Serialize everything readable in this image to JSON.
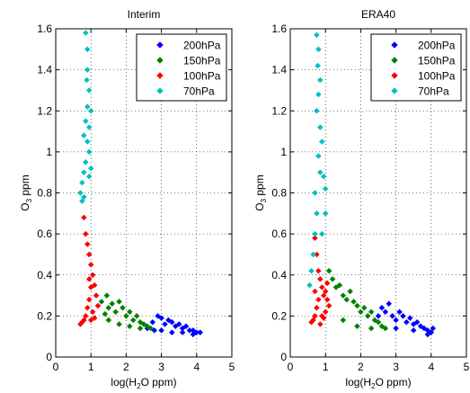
{
  "chart_data": [
    {
      "type": "scatter",
      "title": "Interim",
      "xlabel": "log(H",
      "xlabel_sub": "2",
      "xlabel_tail": "O ppm)",
      "ylabel": "O",
      "ylabel_sub": "3",
      "ylabel_tail": " ppm",
      "xlim": [
        0,
        5
      ],
      "ylim": [
        0,
        1.6
      ],
      "xticks": [
        "0",
        "1",
        "2",
        "3",
        "4",
        "5"
      ],
      "yticks": [
        "0",
        "0.2",
        "0.4",
        "0.6",
        "0.8",
        "1",
        "1.2",
        "1.4",
        "1.6"
      ],
      "grid": true,
      "legend_position": "top-right",
      "series": [
        {
          "name": "200hPa",
          "color": "#0000ff",
          "points": [
            [
              2.6,
              0.14
            ],
            [
              2.75,
              0.17
            ],
            [
              2.9,
              0.2
            ],
            [
              3.0,
              0.19
            ],
            [
              3.1,
              0.16
            ],
            [
              3.2,
              0.18
            ],
            [
              3.3,
              0.17
            ],
            [
              3.4,
              0.15
            ],
            [
              3.5,
              0.16
            ],
            [
              3.6,
              0.14
            ],
            [
              3.7,
              0.15
            ],
            [
              3.8,
              0.13
            ],
            [
              3.9,
              0.13
            ],
            [
              4.0,
              0.12
            ],
            [
              4.1,
              0.12
            ],
            [
              2.8,
              0.13
            ],
            [
              3.0,
              0.13
            ],
            [
              3.3,
              0.12
            ],
            [
              3.6,
              0.12
            ],
            [
              3.9,
              0.11
            ]
          ]
        },
        {
          "name": "150hPa",
          "color": "#008000",
          "points": [
            [
              1.3,
              0.27
            ],
            [
              1.45,
              0.3
            ],
            [
              1.5,
              0.24
            ],
            [
              1.6,
              0.26
            ],
            [
              1.7,
              0.22
            ],
            [
              1.8,
              0.27
            ],
            [
              1.9,
              0.24
            ],
            [
              2.0,
              0.2
            ],
            [
              2.1,
              0.22
            ],
            [
              2.2,
              0.18
            ],
            [
              2.3,
              0.2
            ],
            [
              2.4,
              0.17
            ],
            [
              2.5,
              0.16
            ],
            [
              2.6,
              0.15
            ],
            [
              2.7,
              0.14
            ],
            [
              1.5,
              0.18
            ],
            [
              1.8,
              0.16
            ],
            [
              2.1,
              0.15
            ],
            [
              2.4,
              0.14
            ],
            [
              1.4,
              0.21
            ]
          ]
        },
        {
          "name": "100hPa",
          "color": "#ff0000",
          "points": [
            [
              0.8,
              0.68
            ],
            [
              0.85,
              0.6
            ],
            [
              0.9,
              0.55
            ],
            [
              0.95,
              0.5
            ],
            [
              1.0,
              0.45
            ],
            [
              1.05,
              0.4
            ],
            [
              1.1,
              0.35
            ],
            [
              1.15,
              0.3
            ],
            [
              0.95,
              0.28
            ],
            [
              0.9,
              0.24
            ],
            [
              0.85,
              0.2
            ],
            [
              0.8,
              0.18
            ],
            [
              0.75,
              0.17
            ],
            [
              0.7,
              0.16
            ],
            [
              1.05,
              0.22
            ],
            [
              1.2,
              0.25
            ],
            [
              1.1,
              0.19
            ],
            [
              1.0,
              0.34
            ],
            [
              0.95,
              0.38
            ],
            [
              1.0,
              0.18
            ]
          ]
        },
        {
          "name": "70hPa",
          "color": "#00c0c0",
          "points": [
            [
              0.85,
              1.58
            ],
            [
              0.9,
              1.5
            ],
            [
              0.9,
              1.4
            ],
            [
              0.95,
              1.3
            ],
            [
              0.9,
              1.22
            ],
            [
              0.95,
              1.12
            ],
            [
              0.9,
              1.05
            ],
            [
              0.95,
              1.0
            ],
            [
              0.85,
              0.95
            ],
            [
              0.8,
              0.9
            ],
            [
              0.75,
              0.85
            ],
            [
              0.7,
              0.8
            ],
            [
              0.75,
              0.76
            ],
            [
              0.8,
              0.78
            ],
            [
              0.95,
              0.88
            ],
            [
              1.0,
              0.92
            ],
            [
              0.85,
              1.15
            ],
            [
              0.8,
              1.08
            ],
            [
              1.0,
              1.2
            ],
            [
              0.88,
              1.35
            ]
          ]
        }
      ]
    },
    {
      "type": "scatter",
      "title": "ERA40",
      "xlabel": "log(H",
      "xlabel_sub": "2",
      "xlabel_tail": "O ppm)",
      "ylabel": "O",
      "ylabel_sub": "3",
      "ylabel_tail": " ppm",
      "xlim": [
        0,
        5
      ],
      "ylim": [
        0,
        1.6
      ],
      "xticks": [
        "0",
        "1",
        "2",
        "3",
        "4",
        "5"
      ],
      "yticks": [
        "0",
        "0.2",
        "0.4",
        "0.6",
        "0.8",
        "1",
        "1.2",
        "1.4",
        "1.6"
      ],
      "grid": true,
      "legend_position": "top-right",
      "series": [
        {
          "name": "200hPa",
          "color": "#0000ff",
          "points": [
            [
              2.5,
              0.2
            ],
            [
              2.6,
              0.24
            ],
            [
              2.7,
              0.22
            ],
            [
              2.8,
              0.26
            ],
            [
              2.9,
              0.2
            ],
            [
              3.0,
              0.18
            ],
            [
              3.1,
              0.22
            ],
            [
              3.2,
              0.2
            ],
            [
              3.3,
              0.17
            ],
            [
              3.4,
              0.19
            ],
            [
              3.5,
              0.16
            ],
            [
              3.6,
              0.17
            ],
            [
              3.7,
              0.15
            ],
            [
              3.8,
              0.14
            ],
            [
              3.9,
              0.13
            ],
            [
              4.0,
              0.12
            ],
            [
              4.05,
              0.14
            ],
            [
              3.0,
              0.14
            ],
            [
              3.5,
              0.13
            ],
            [
              3.9,
              0.11
            ]
          ]
        },
        {
          "name": "150hPa",
          "color": "#008000",
          "points": [
            [
              1.1,
              0.42
            ],
            [
              1.2,
              0.38
            ],
            [
              1.3,
              0.34
            ],
            [
              1.4,
              0.35
            ],
            [
              1.5,
              0.3
            ],
            [
              1.6,
              0.28
            ],
            [
              1.7,
              0.32
            ],
            [
              1.8,
              0.27
            ],
            [
              1.9,
              0.25
            ],
            [
              2.0,
              0.22
            ],
            [
              2.1,
              0.24
            ],
            [
              2.2,
              0.2
            ],
            [
              2.3,
              0.22
            ],
            [
              2.4,
              0.18
            ],
            [
              2.5,
              0.17
            ],
            [
              2.6,
              0.15
            ],
            [
              2.7,
              0.14
            ],
            [
              1.5,
              0.18
            ],
            [
              1.9,
              0.15
            ],
            [
              2.3,
              0.14
            ]
          ]
        },
        {
          "name": "100hPa",
          "color": "#ff0000",
          "points": [
            [
              0.7,
              0.58
            ],
            [
              0.75,
              0.5
            ],
            [
              0.8,
              0.42
            ],
            [
              0.85,
              0.38
            ],
            [
              0.9,
              0.34
            ],
            [
              0.95,
              0.3
            ],
            [
              1.0,
              0.32
            ],
            [
              1.05,
              0.28
            ],
            [
              0.8,
              0.28
            ],
            [
              0.75,
              0.24
            ],
            [
              0.7,
              0.2
            ],
            [
              0.65,
              0.18
            ],
            [
              0.6,
              0.17
            ],
            [
              0.9,
              0.2
            ],
            [
              1.0,
              0.22
            ],
            [
              1.1,
              0.25
            ],
            [
              0.85,
              0.16
            ],
            [
              0.7,
              0.32
            ],
            [
              1.05,
              0.36
            ],
            [
              0.95,
              0.19
            ]
          ]
        },
        {
          "name": "70hPa",
          "color": "#00c0c0",
          "points": [
            [
              0.75,
              1.57
            ],
            [
              0.8,
              1.5
            ],
            [
              0.78,
              1.42
            ],
            [
              0.85,
              1.35
            ],
            [
              0.8,
              1.28
            ],
            [
              0.75,
              1.2
            ],
            [
              0.85,
              1.12
            ],
            [
              0.9,
              1.05
            ],
            [
              0.8,
              0.98
            ],
            [
              0.85,
              0.9
            ],
            [
              0.95,
              0.88
            ],
            [
              1.0,
              0.82
            ],
            [
              0.7,
              0.8
            ],
            [
              0.75,
              0.7
            ],
            [
              0.7,
              0.6
            ],
            [
              0.65,
              0.5
            ],
            [
              0.6,
              0.42
            ],
            [
              0.55,
              0.35
            ],
            [
              0.9,
              0.6
            ],
            [
              1.0,
              0.7
            ]
          ]
        }
      ]
    }
  ]
}
